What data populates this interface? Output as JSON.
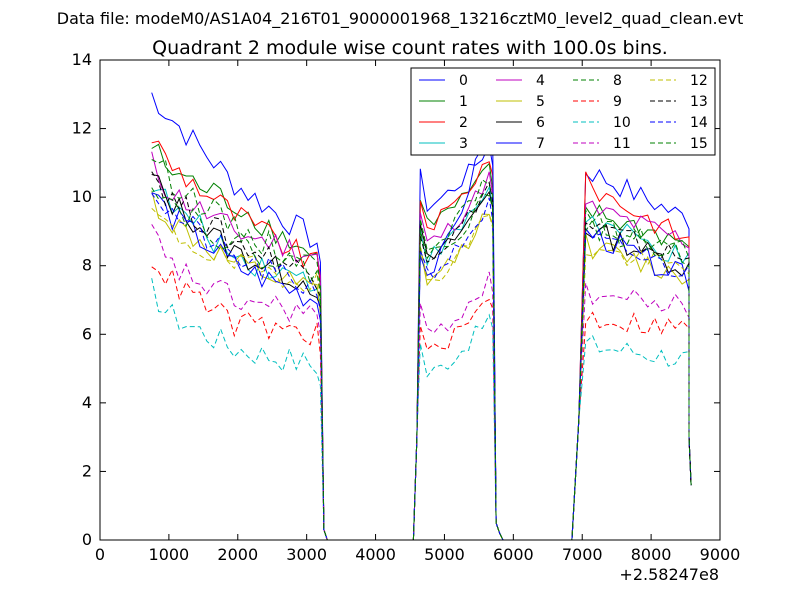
{
  "header": {
    "datafile": "Data file: modeM0/AS1A04_216T01_9000001968_13216cztM0_level2_quad_clean.evt"
  },
  "chart_data": {
    "type": "line",
    "title": "Quadrant 2 module wise count rates with 100.0s bins.",
    "xlabel": "",
    "ylabel": "",
    "x_offset_label": "+2.58247e8",
    "xlim": [
      0,
      9000
    ],
    "ylim": [
      0,
      14
    ],
    "xticks": [
      "0",
      "1000",
      "2000",
      "3000",
      "4000",
      "5000",
      "6000",
      "7000",
      "8000",
      "9000"
    ],
    "yticks": [
      "0",
      "2",
      "4",
      "6",
      "8",
      "10",
      "12",
      "14"
    ],
    "legend_location": "top-right",
    "segments": [
      {
        "x_start": 750,
        "step": 100,
        "count": 25
      },
      {
        "x_start": 4650,
        "step": 100,
        "count": 11
      },
      {
        "x_start": 7050,
        "step": 100,
        "count": 16
      }
    ],
    "series": [
      {
        "name": "0",
        "color": "#0000ff",
        "style": "solid",
        "start": [
          13.0,
          12.4,
          10.4,
          8.7
        ],
        "peak": [
          10.6,
          11.5,
          10.8
        ]
      },
      {
        "name": "1",
        "color": "#008000",
        "style": "solid",
        "start": [
          11.5,
          10.8,
          9.8,
          8.2
        ],
        "peak": [
          10.1,
          10.8,
          9.6
        ]
      },
      {
        "name": "2",
        "color": "#ff0000",
        "style": "solid",
        "start": [
          11.8,
          11.0,
          9.5,
          8.0
        ],
        "peak": [
          10.0,
          11.2,
          10.4
        ]
      },
      {
        "name": "3",
        "color": "#00bfbf",
        "style": "solid",
        "start": [
          10.5,
          9.8,
          8.3,
          7.5
        ],
        "peak": [
          9.1,
          10.3,
          9.4
        ]
      },
      {
        "name": "4",
        "color": "#bf00bf",
        "style": "solid",
        "start": [
          11.0,
          10.2,
          9.0,
          8.3
        ],
        "peak": [
          9.5,
          10.6,
          9.7
        ]
      },
      {
        "name": "5",
        "color": "#bfbf00",
        "style": "solid",
        "start": [
          10.0,
          9.3,
          8.0,
          7.2
        ],
        "peak": [
          8.4,
          9.7,
          8.6
        ]
      },
      {
        "name": "6",
        "color": "#000000",
        "style": "solid",
        "start": [
          10.6,
          9.9,
          8.4,
          7.4
        ],
        "peak": [
          9.0,
          10.2,
          9.1
        ]
      },
      {
        "name": "7",
        "color": "#0000ff",
        "style": "solid",
        "start": [
          10.2,
          9.5,
          8.0,
          7.0
        ],
        "peak": [
          8.5,
          12.3,
          9.0
        ]
      },
      {
        "name": "8",
        "color": "#008000",
        "style": "dashed",
        "start": [
          11.3,
          10.6,
          9.1,
          8.0
        ],
        "peak": [
          9.5,
          10.6,
          9.3
        ]
      },
      {
        "name": "9",
        "color": "#ff0000",
        "style": "dashed",
        "start": [
          8.3,
          7.6,
          6.3,
          6.0
        ],
        "peak": [
          6.3,
          7.1,
          6.5
        ]
      },
      {
        "name": "10",
        "color": "#00bfbf",
        "style": "dashed",
        "start": [
          7.3,
          6.6,
          5.6,
          5.1
        ],
        "peak": [
          5.7,
          6.5,
          5.7
        ]
      },
      {
        "name": "11",
        "color": "#bf00bf",
        "style": "dashed",
        "start": [
          9.0,
          8.0,
          7.0,
          6.6
        ],
        "peak": [
          6.8,
          7.6,
          7.2
        ]
      },
      {
        "name": "12",
        "color": "#bfbf00",
        "style": "dashed",
        "start": [
          9.6,
          9.0,
          8.0,
          7.6
        ],
        "peak": [
          8.4,
          9.6,
          8.5
        ]
      },
      {
        "name": "13",
        "color": "#000000",
        "style": "dashed",
        "start": [
          10.8,
          10.0,
          8.7,
          7.7
        ],
        "peak": [
          9.1,
          10.4,
          9.2
        ]
      },
      {
        "name": "14",
        "color": "#0000ff",
        "style": "dashed",
        "start": [
          10.3,
          9.6,
          8.2,
          7.3
        ],
        "peak": [
          8.6,
          9.8,
          8.8
        ]
      },
      {
        "name": "15",
        "color": "#008000",
        "style": "dashed",
        "start": [
          10.6,
          9.9,
          8.6,
          7.8
        ],
        "peak": [
          9.1,
          10.2,
          9.2
        ]
      }
    ]
  }
}
